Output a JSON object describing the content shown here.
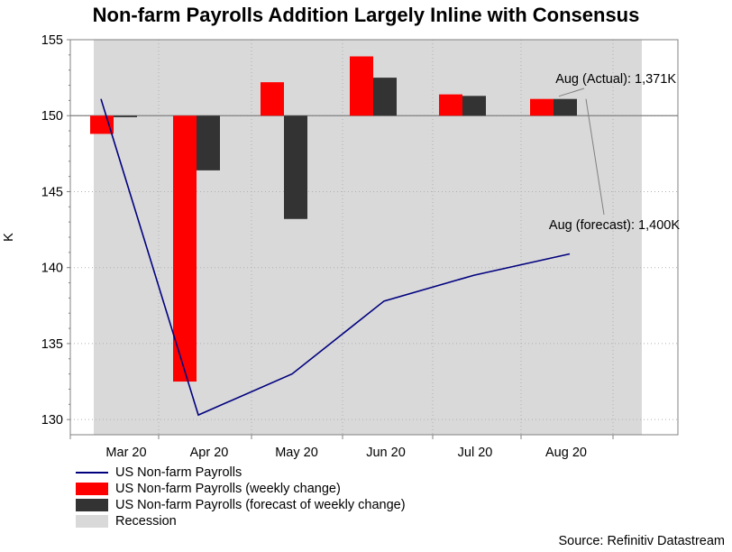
{
  "title": "Non-farm Payrolls Addition Largely Inline with Consensus",
  "source": "Source: Refinitiv Datastream",
  "colors": {
    "payrolls_line": "#00007f",
    "weekly_change": "#ff0000",
    "forecast_change": "#333333",
    "recession": "#d9d9d9",
    "baseline": "#808080"
  },
  "chart_data": {
    "type": "bar+line",
    "ylabel": "K",
    "ylim": [
      129,
      155
    ],
    "yticks": [
      130,
      135,
      140,
      145,
      150,
      155
    ],
    "baseline": 150,
    "categories": [
      "Mar 20",
      "Apr 20",
      "May 20",
      "Jun 20",
      "Jul 20",
      "Aug 20"
    ],
    "series": [
      {
        "name": "US Non-farm Payrolls",
        "type": "line",
        "values": [
          151.1,
          130.3,
          133.0,
          137.8,
          139.5,
          140.9
        ]
      },
      {
        "name": "US Non-farm Payrolls (weekly change)",
        "type": "bar",
        "values": [
          148.8,
          132.5,
          152.2,
          153.9,
          151.4,
          151.1
        ]
      },
      {
        "name": "US Non-farm Payrolls (forecast of weekly change)",
        "type": "bar",
        "values": [
          149.9,
          146.4,
          143.2,
          152.5,
          151.3,
          151.1
        ]
      }
    ],
    "recession_label": "Recession",
    "annotations": [
      {
        "text": "Aug (Actual): 1,371K",
        "target_category": "Aug 20",
        "target_value": 151.1
      },
      {
        "text": "Aug (forecast): 1,400K",
        "target_category": "Aug 20",
        "target_value": 151.0
      }
    ]
  }
}
